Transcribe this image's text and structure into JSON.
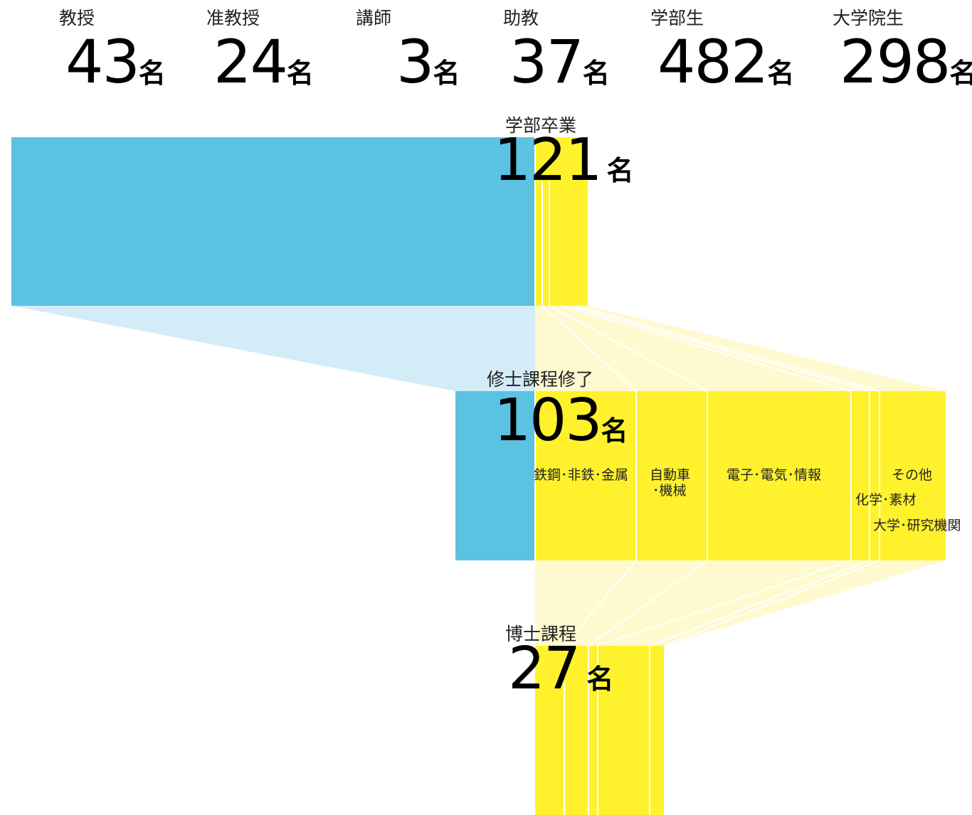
{
  "colors": {
    "blue": "#5bc2e1",
    "blue_light": "#d3ecf8",
    "yellow": "#fff22c",
    "yellow_light": "#fff9cf"
  },
  "stats": [
    {
      "label": "教授",
      "value": "43",
      "unit": "名"
    },
    {
      "label": "准教授",
      "value": "24",
      "unit": "名"
    },
    {
      "label": "講師",
      "value": "3",
      "unit": "名"
    },
    {
      "label": "助教",
      "value": "37",
      "unit": "名"
    },
    {
      "label": "学部生",
      "value": "482",
      "unit": "名"
    },
    {
      "label": "大学院生",
      "value": "298",
      "unit": "名"
    }
  ],
  "stages": [
    {
      "label": "学部卒業",
      "value": "121",
      "unit": "名"
    },
    {
      "label": "修士課程修了",
      "value": "103",
      "unit": "名"
    },
    {
      "label": "博士課程",
      "value": "27",
      "unit": "名"
    }
  ],
  "categories": {
    "steel": "鉄鋼･非鉄･金属",
    "auto_line1": "自動車",
    "auto_line2": "･機械",
    "electronics": "電子･電気･情報",
    "other": "その他",
    "chemical": "化学･素材",
    "university": "大学･研究機関"
  }
}
